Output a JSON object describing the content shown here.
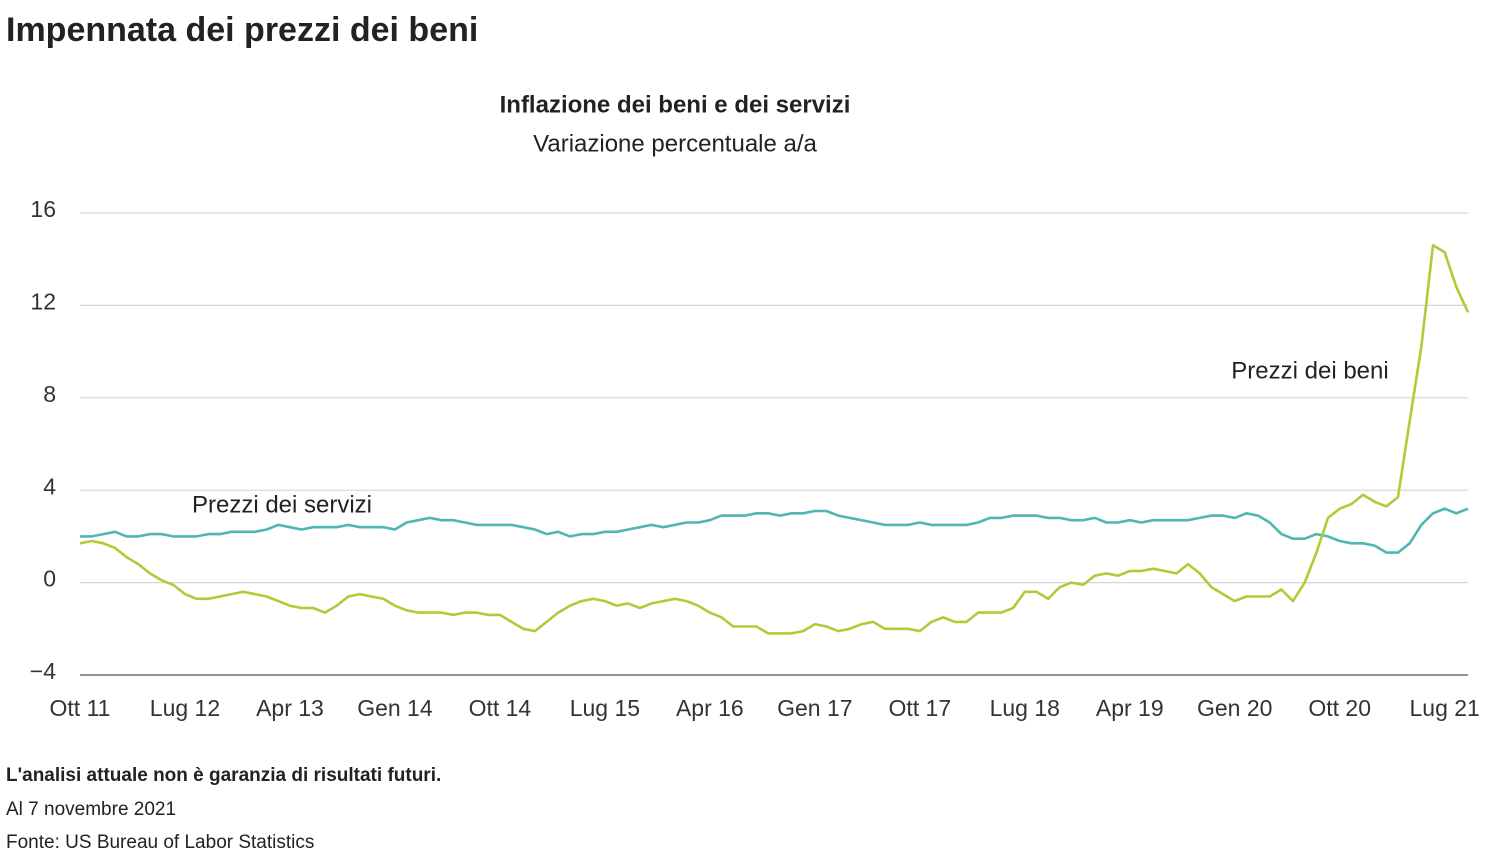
{
  "chart_data": {
    "type": "line",
    "page_title": "Impennata dei prezzi dei beni",
    "title": "Inflazione dei beni e dei servizi",
    "subtitle": "Variazione percentuale a/a",
    "categories": [
      "Ott 11",
      null,
      null,
      null,
      null,
      null,
      null,
      null,
      null,
      "Lug 12",
      null,
      null,
      null,
      null,
      null,
      null,
      null,
      null,
      "Apr 13",
      null,
      null,
      null,
      null,
      null,
      null,
      null,
      null,
      "Gen 14",
      null,
      null,
      null,
      null,
      null,
      null,
      null,
      null,
      "Ott 14",
      null,
      null,
      null,
      null,
      null,
      null,
      null,
      null,
      "Lug 15",
      null,
      null,
      null,
      null,
      null,
      null,
      null,
      null,
      "Apr 16",
      null,
      null,
      null,
      null,
      null,
      null,
      null,
      null,
      "Gen 17",
      null,
      null,
      null,
      null,
      null,
      null,
      null,
      null,
      "Ott 17",
      null,
      null,
      null,
      null,
      null,
      null,
      null,
      null,
      "Lug 18",
      null,
      null,
      null,
      null,
      null,
      null,
      null,
      null,
      "Apr 19",
      null,
      null,
      null,
      null,
      null,
      null,
      null,
      null,
      "Gen 20",
      null,
      null,
      null,
      null,
      null,
      null,
      null,
      null,
      "Ott 20",
      null,
      null,
      null,
      null,
      null,
      null,
      null,
      null,
      "Lug 21",
      null,
      null
    ],
    "series": [
      {
        "name": "Prezzi dei servizi",
        "color": "#4fb6b1",
        "values": [
          2.0,
          2.0,
          2.1,
          2.2,
          2.0,
          2.0,
          2.1,
          2.1,
          2.0,
          2.0,
          2.0,
          2.1,
          2.1,
          2.2,
          2.2,
          2.2,
          2.3,
          2.5,
          2.4,
          2.3,
          2.4,
          2.4,
          2.4,
          2.5,
          2.4,
          2.4,
          2.4,
          2.3,
          2.6,
          2.7,
          2.8,
          2.7,
          2.7,
          2.6,
          2.5,
          2.5,
          2.5,
          2.5,
          2.4,
          2.3,
          2.1,
          2.2,
          2.0,
          2.1,
          2.1,
          2.2,
          2.2,
          2.3,
          2.4,
          2.5,
          2.4,
          2.5,
          2.6,
          2.6,
          2.7,
          2.9,
          2.9,
          2.9,
          3.0,
          3.0,
          2.9,
          3.0,
          3.0,
          3.1,
          3.1,
          2.9,
          2.8,
          2.7,
          2.6,
          2.5,
          2.5,
          2.5,
          2.6,
          2.5,
          2.5,
          2.5,
          2.5,
          2.6,
          2.8,
          2.8,
          2.9,
          2.9,
          2.9,
          2.8,
          2.8,
          2.7,
          2.7,
          2.8,
          2.6,
          2.6,
          2.7,
          2.6,
          2.7,
          2.7,
          2.7,
          2.7,
          2.8,
          2.9,
          2.9,
          2.8,
          3.0,
          2.9,
          2.6,
          2.1,
          1.9,
          1.9,
          2.1,
          2.0,
          1.8,
          1.7,
          1.7,
          1.6,
          1.3,
          1.3,
          1.7,
          2.5,
          3.0,
          3.2,
          3.0,
          3.2
        ]
      },
      {
        "name": "Prezzi dei beni",
        "color": "#b6c838",
        "values": [
          1.7,
          1.8,
          1.7,
          1.5,
          1.1,
          0.8,
          0.4,
          0.1,
          -0.1,
          -0.5,
          -0.7,
          -0.7,
          -0.6,
          -0.5,
          -0.4,
          -0.5,
          -0.6,
          -0.8,
          -1.0,
          -1.1,
          -1.1,
          -1.3,
          -1.0,
          -0.6,
          -0.5,
          -0.6,
          -0.7,
          -1.0,
          -1.2,
          -1.3,
          -1.3,
          -1.3,
          -1.4,
          -1.3,
          -1.3,
          -1.4,
          -1.4,
          -1.7,
          -2.0,
          -2.1,
          -1.7,
          -1.3,
          -1.0,
          -0.8,
          -0.7,
          -0.8,
          -1.0,
          -0.9,
          -1.1,
          -0.9,
          -0.8,
          -0.7,
          -0.8,
          -1.0,
          -1.3,
          -1.5,
          -1.9,
          -1.9,
          -1.9,
          -2.2,
          -2.2,
          -2.2,
          -2.1,
          -1.8,
          -1.9,
          -2.1,
          -2.0,
          -1.8,
          -1.7,
          -2.0,
          -2.0,
          -2.0,
          -2.1,
          -1.7,
          -1.5,
          -1.7,
          -1.7,
          -1.3,
          -1.3,
          -1.3,
          -1.1,
          -0.4,
          -0.4,
          -0.7,
          -0.2,
          0.0,
          -0.1,
          0.3,
          0.4,
          0.3,
          0.5,
          0.5,
          0.6,
          0.5,
          0.4,
          0.8,
          0.4,
          -0.2,
          -0.5,
          -0.8,
          -0.6,
          -0.6,
          -0.6,
          -0.3,
          -0.8,
          0.0,
          1.3,
          2.8,
          3.2,
          3.4,
          3.8,
          3.5,
          3.3,
          3.7,
          7.0,
          10.2,
          14.6,
          14.3,
          12.8,
          11.7
        ]
      }
    ],
    "ylim": [
      -4,
      16
    ],
    "yticks": [
      {
        "value": -4,
        "label": "−4"
      },
      0,
      4,
      8,
      12,
      16
    ],
    "grid": true,
    "note": "L'analisi attuale non è garanzia di risultati futuri.",
    "date": "Al 7 novembre 2021",
    "source": "Fonte: US Bureau of Labor Statistics"
  }
}
